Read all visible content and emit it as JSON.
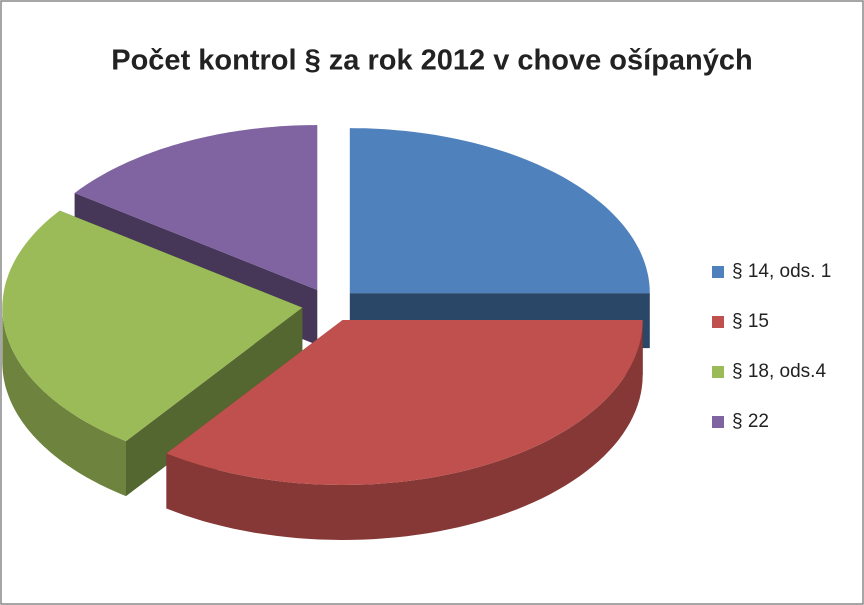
{
  "chart_data": {
    "type": "pie",
    "title": "Počet kontrol § za rok 2012 v chove ošípaných",
    "categories": [
      "§ 14, ods. 1",
      "§ 15",
      "§ 18, ods.4",
      "§ 22"
    ],
    "values": [
      25,
      35,
      25,
      15
    ],
    "colors": [
      "#4f81bd",
      "#c0504d",
      "#9bbb59",
      "#8064a2"
    ],
    "legend": "right"
  }
}
